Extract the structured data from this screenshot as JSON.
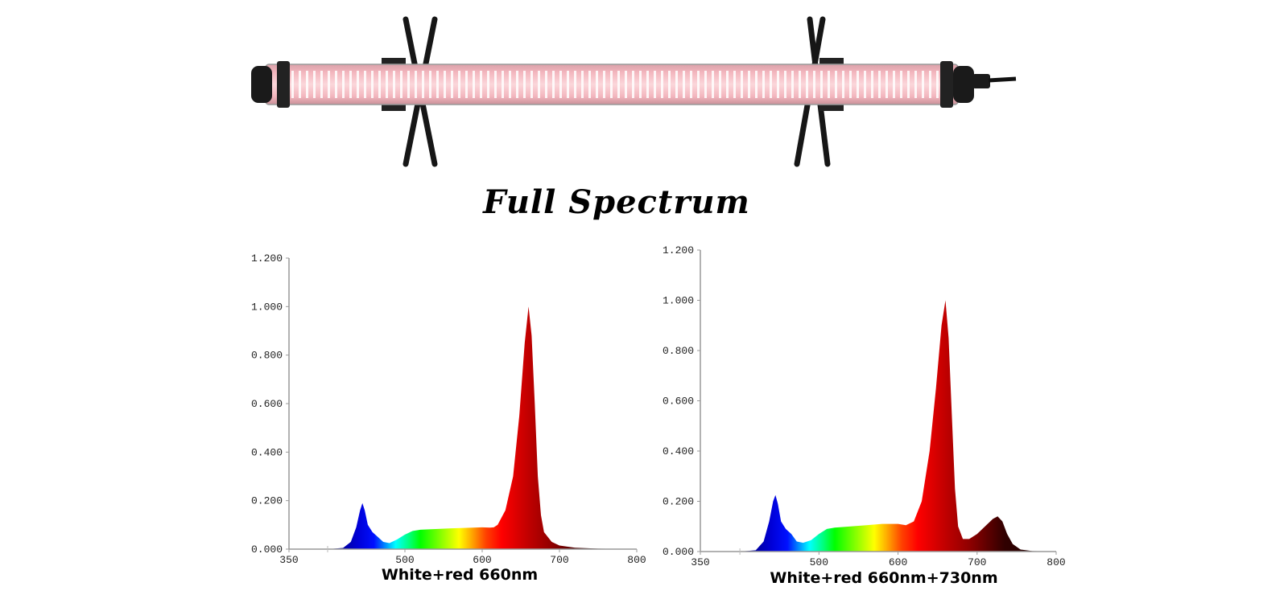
{
  "header": {
    "title": "Full Spectrum"
  },
  "colors": {
    "tube": "#f4b8c0",
    "frame": "#1a1a1a"
  },
  "chart_data": [
    {
      "type": "area",
      "title": "White+red 660nm",
      "xlabel": "",
      "ylabel": "",
      "xlim": [
        350,
        800
      ],
      "ylim": [
        0,
        1.2
      ],
      "x_ticks": [
        350,
        500,
        600,
        700,
        800
      ],
      "x_minor_ticks": [
        400
      ],
      "y_ticks": [
        "0.000",
        "0.200",
        "0.400",
        "0.600",
        "0.800",
        "1.000",
        "1.200"
      ],
      "grid": false,
      "x": [
        400,
        420,
        430,
        437,
        442,
        445,
        448,
        452,
        458,
        465,
        472,
        480,
        490,
        500,
        510,
        520,
        540,
        560,
        580,
        600,
        610,
        615,
        620,
        630,
        640,
        648,
        655,
        660,
        664,
        668,
        672,
        676,
        680,
        690,
        700,
        720,
        750,
        800
      ],
      "values": [
        0,
        0.005,
        0.03,
        0.09,
        0.16,
        0.19,
        0.16,
        0.1,
        0.07,
        0.05,
        0.03,
        0.025,
        0.04,
        0.06,
        0.075,
        0.08,
        0.083,
        0.086,
        0.088,
        0.09,
        0.089,
        0.09,
        0.1,
        0.16,
        0.3,
        0.55,
        0.85,
        1.0,
        0.88,
        0.6,
        0.3,
        0.14,
        0.07,
        0.03,
        0.015,
        0.006,
        0.002,
        0
      ]
    },
    {
      "type": "area",
      "title": "White+red 660nm+730nm",
      "xlabel": "",
      "ylabel": "",
      "xlim": [
        350,
        800
      ],
      "ylim": [
        0,
        1.2
      ],
      "x_ticks": [
        350,
        500,
        600,
        700,
        800
      ],
      "x_minor_ticks": [
        400
      ],
      "y_ticks": [
        "0.000",
        "0.200",
        "0.400",
        "0.600",
        "0.800",
        "1.000",
        "1.200"
      ],
      "grid": false,
      "x": [
        400,
        420,
        430,
        437,
        442,
        445,
        448,
        452,
        458,
        465,
        472,
        480,
        490,
        500,
        510,
        520,
        540,
        560,
        580,
        600,
        610,
        620,
        630,
        640,
        648,
        655,
        660,
        664,
        668,
        672,
        676,
        682,
        690,
        700,
        710,
        720,
        726,
        732,
        738,
        745,
        755,
        770,
        800
      ],
      "values": [
        0,
        0.005,
        0.04,
        0.12,
        0.2,
        0.225,
        0.19,
        0.12,
        0.09,
        0.07,
        0.04,
        0.035,
        0.045,
        0.07,
        0.09,
        0.095,
        0.1,
        0.105,
        0.11,
        0.11,
        0.105,
        0.12,
        0.2,
        0.4,
        0.65,
        0.9,
        1.0,
        0.85,
        0.55,
        0.25,
        0.1,
        0.05,
        0.05,
        0.07,
        0.1,
        0.13,
        0.14,
        0.12,
        0.07,
        0.03,
        0.008,
        0.002,
        0
      ]
    }
  ]
}
